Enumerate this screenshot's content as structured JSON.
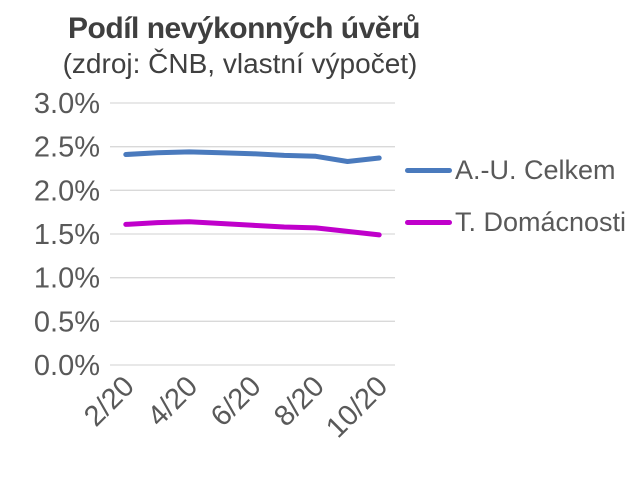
{
  "chart_data": {
    "type": "line",
    "title": "Podíl nevýkonných úvěrů",
    "subtitle": "(zdroj: ČNB, vlastní výpočet)",
    "categories": [
      "2/20",
      "3/20",
      "4/20",
      "5/20",
      "6/20",
      "7/20",
      "8/20",
      "9/20",
      "10/20"
    ],
    "series": [
      {
        "name": "A.-U. Celkem",
        "color": "#4A7ABD",
        "values": [
          2.41,
          2.43,
          2.44,
          2.43,
          2.42,
          2.4,
          2.39,
          2.33,
          2.37
        ]
      },
      {
        "name": "T. Domácnosti",
        "color": "#C000CB",
        "values": [
          1.61,
          1.63,
          1.64,
          1.62,
          1.6,
          1.58,
          1.57,
          1.53,
          1.49
        ]
      }
    ],
    "ylim": [
      0,
      3
    ],
    "y_ticks": [
      0,
      0.5,
      1,
      1.5,
      2,
      2.5,
      3
    ],
    "y_tick_labels": [
      "0.0%",
      "0.5%",
      "1.0%",
      "1.5%",
      "2.0%",
      "2.5%",
      "3.0%"
    ],
    "x_ticks": [
      {
        "index": 0,
        "label": "2/20"
      },
      {
        "index": 2,
        "label": "4/20"
      },
      {
        "index": 4,
        "label": "6/20"
      },
      {
        "index": 6,
        "label": "8/20"
      },
      {
        "index": 8,
        "label": "10/20"
      }
    ],
    "grid": true,
    "legend_position": "right",
    "colors": {
      "grid": "#D9D9D9",
      "axis_label": "#595959",
      "title": "#3F3F3F"
    }
  }
}
